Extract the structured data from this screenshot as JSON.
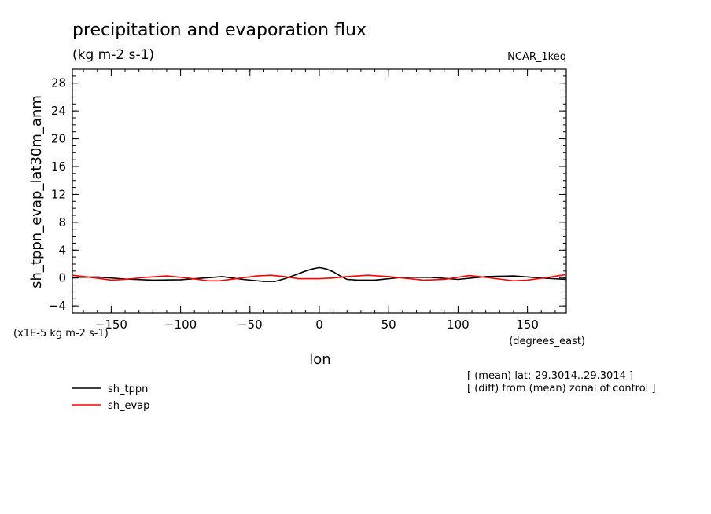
{
  "chart_data": {
    "type": "line",
    "title": "precipitation and evaporation flux",
    "units": "(kg m-2 s-1)",
    "dataset": "NCAR_1keq",
    "xlabel": "lon",
    "x_units": "(degrees_east)",
    "ylabel": "sh_tppn_evap_lat30m_anm",
    "y_scale_note": "(x1E-5 kg m-2 s-1)",
    "xlim": [
      -178,
      178
    ],
    "ylim": [
      -5,
      30
    ],
    "xticks": [
      -150,
      -100,
      -50,
      0,
      50,
      100,
      150
    ],
    "yticks": [
      -4,
      0,
      4,
      8,
      12,
      16,
      20,
      24,
      28
    ],
    "annotations": [
      "[ (mean) lat:-29.3014..29.3014 ]",
      "[ (diff) from (mean) zonal of control ]"
    ],
    "grid": false,
    "legend_position": "bottom-left",
    "series": [
      {
        "name": "sh_tppn",
        "color": "#000000",
        "x": [
          -178,
          -160,
          -140,
          -120,
          -100,
          -80,
          -70,
          -55,
          -40,
          -32,
          -25,
          -18,
          -10,
          -5,
          0,
          5,
          10,
          15,
          20,
          28,
          40,
          60,
          80,
          100,
          120,
          140,
          160,
          178
        ],
        "y": [
          0.1,
          0.15,
          -0.15,
          -0.3,
          -0.25,
          0.05,
          0.2,
          -0.2,
          -0.5,
          -0.5,
          -0.1,
          0.4,
          1.0,
          1.3,
          1.5,
          1.3,
          0.9,
          0.3,
          -0.2,
          -0.3,
          -0.3,
          0.1,
          0.1,
          -0.2,
          0.2,
          0.3,
          0.0,
          -0.2
        ]
      },
      {
        "name": "sh_evap",
        "color": "#ff0000",
        "x": [
          -178,
          -165,
          -150,
          -140,
          -125,
          -110,
          -95,
          -80,
          -72,
          -60,
          -45,
          -35,
          -25,
          -15,
          0,
          10,
          20,
          35,
          50,
          65,
          75,
          90,
          108,
          120,
          140,
          150,
          165,
          178
        ],
        "y": [
          0.4,
          0.1,
          -0.3,
          -0.2,
          0.1,
          0.3,
          0.0,
          -0.4,
          -0.4,
          -0.1,
          0.3,
          0.4,
          0.2,
          -0.1,
          -0.1,
          0.0,
          0.2,
          0.4,
          0.2,
          -0.1,
          -0.3,
          -0.2,
          0.35,
          0.1,
          -0.4,
          -0.3,
          0.1,
          0.5
        ]
      }
    ]
  }
}
